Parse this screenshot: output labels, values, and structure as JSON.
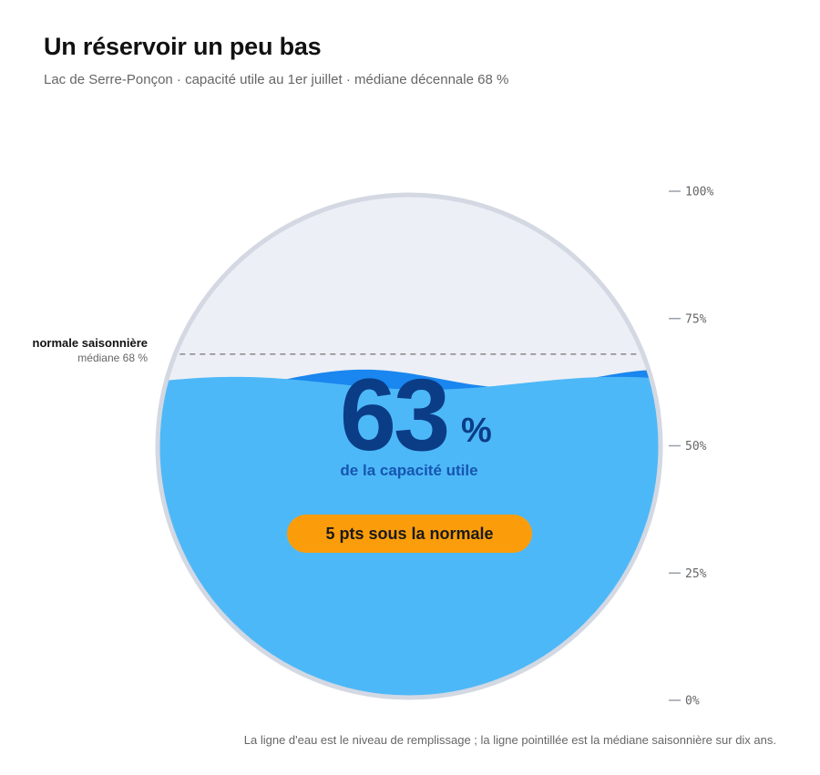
{
  "header": {
    "title": "Un réservoir un peu bas",
    "subtitle": "Lac de Serre-Ponçon · capacité utile au 1er juillet · médiane décennale 68 %"
  },
  "reference": {
    "label": "normale saisonnière",
    "sublabel": "médiane 68 %"
  },
  "readout": {
    "value": "63",
    "unit": "%",
    "caption": "de la capacité utile",
    "badge": "5 pts sous la normale"
  },
  "footnote": "La ligne d'eau est le niveau de remplissage ; la ligne pointillée est la médiane saisonnière sur dix ans.",
  "colors": {
    "water": "#4db8f8",
    "wave_mid": "#1a86ef",
    "wave_dark": "#0d63d6",
    "empty": "#eceff5",
    "rim": "#d3d8e2",
    "number": "#0b3d86",
    "caption": "#1556b0",
    "badge": "#fb9d0b",
    "median_line": "#888888"
  },
  "chart_data": {
    "type": "gauge",
    "value": 63,
    "reference": 68,
    "range": [
      0,
      100
    ],
    "ticks": [
      0,
      25,
      50,
      75,
      100
    ],
    "tick_labels": [
      "0%",
      "25%",
      "50%",
      "75%",
      "100%"
    ]
  }
}
